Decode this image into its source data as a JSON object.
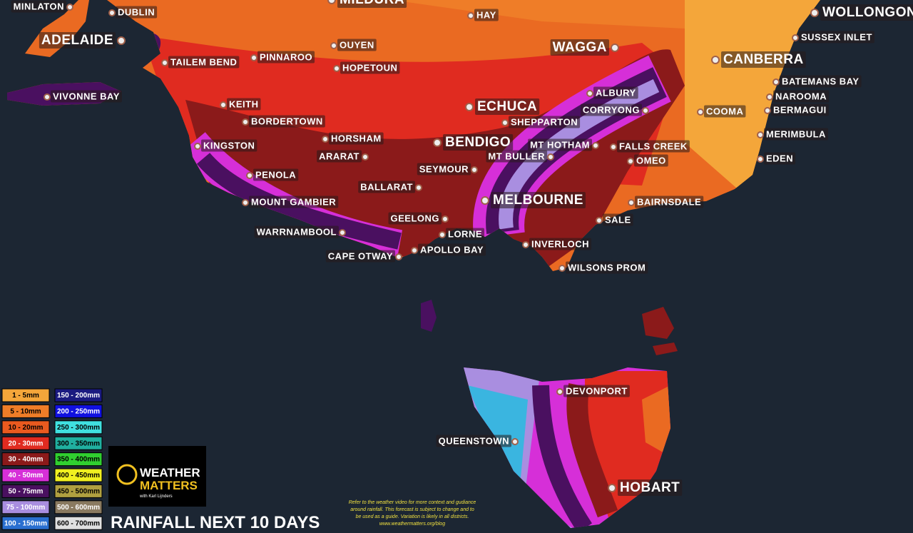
{
  "places": [
    "MINLATON",
    "MILDURA",
    "DUBLIN",
    "HAY",
    "WOLLONGONG",
    "ADELAIDE",
    "SUSSEX INLET",
    "OUYEN",
    "WAGGA",
    "PINNAROO",
    "CANBERRA",
    "TAILEM BEND",
    "HOPETOUN",
    "BATEMANS BAY",
    "ALBURY",
    "VIVONNE BAY",
    "NAROOMA",
    "KEITH",
    "ECHUCA",
    "CORRYONG",
    "BERMAGUI",
    "COOMA",
    "BORDERTOWN",
    "SHEPPARTON",
    "MERIMBULA",
    "HORSHAM",
    "BENDIGO",
    "KINGSTON",
    "MT HOTHAM",
    "FALLS CREEK",
    "ARARAT",
    "MT BULLER",
    "OMEO",
    "EDEN",
    "SEYMOUR",
    "PENOLA",
    "BALLARAT",
    "MELBOURNE",
    "BAIRNSDALE",
    "MOUNT GAMBIER",
    "GEELONG",
    "SALE",
    "WARRNAMBOOL",
    "LORNE",
    "INVERLOCH",
    "APOLLO BAY",
    "CAPE OTWAY",
    "WILSONS PROM",
    "DEVONPORT",
    "QUEENSTOWN",
    "HOBART"
  ],
  "legend": [
    {
      "label": "1 - 5mm",
      "color": "#f4a63a"
    },
    {
      "label": "5 - 10mm",
      "color": "#ef7d28"
    },
    {
      "label": "10 - 20mm",
      "color": "#ea5a1f"
    },
    {
      "label": "20 - 30mm",
      "color": "#e02b20"
    },
    {
      "label": "30 - 40mm",
      "color": "#8b1a1a"
    },
    {
      "label": "40 - 50mm",
      "color": "#d62fd8"
    },
    {
      "label": "50 - 75mm",
      "color": "#4a1060"
    },
    {
      "label": "75 - 100mm",
      "color": "#a98ee0"
    },
    {
      "label": "100 - 150mm",
      "color": "#2a6fd0"
    },
    {
      "label": "150 - 200mm",
      "color": "#1a1a80"
    },
    {
      "label": "200 - 250mm",
      "color": "#1010e0"
    },
    {
      "label": "250 - 300mm",
      "color": "#40e0e0"
    },
    {
      "label": "300 - 350mm",
      "color": "#20b0a0"
    },
    {
      "label": "350 - 400mm",
      "color": "#30d030"
    },
    {
      "label": "400 - 450mm",
      "color": "#f0f020"
    },
    {
      "label": "450 - 500mm",
      "color": "#b0a040"
    },
    {
      "label": "500 - 600mm",
      "color": "#8a7a60"
    },
    {
      "label": "600 - 700mm",
      "color": "#e0e0e0"
    }
  ],
  "title": "RAINFALL NEXT 10 DAYS",
  "logo": {
    "line1": "WEATHER",
    "line2": "MATTERS",
    "byline": "with Karl Lijnders"
  },
  "disclaimer": [
    "Refer to the weather video for more context and gudiance",
    "around rainfall.  This forecast is subject to change and to",
    "be used as a guide.  Variation is likely in all districts.",
    "www.weathermatters.org/blog"
  ]
}
